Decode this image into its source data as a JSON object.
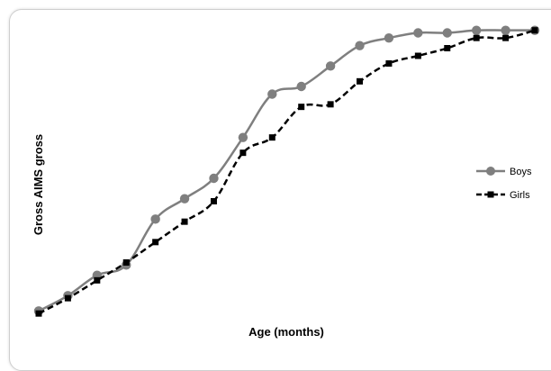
{
  "chart_data": {
    "type": "line",
    "title": "",
    "xlabel": "Age (months)",
    "ylabel": "Gross AIMS gross",
    "x": [
      1,
      2,
      3,
      4,
      5,
      6,
      7,
      8,
      9,
      10,
      11,
      12,
      13,
      14,
      15,
      16,
      17,
      18
    ],
    "ylim": [
      0,
      60
    ],
    "grid": false,
    "legend_position": "right",
    "series": [
      {
        "name": "Boys",
        "color": "#7f7f7f",
        "line_style": "solid",
        "marker": "circle",
        "values": [
          4,
          7,
          11,
          13,
          22,
          26,
          30,
          38,
          46.5,
          48,
          52,
          56,
          57.5,
          58.5,
          58.5,
          59,
          59,
          59
        ]
      },
      {
        "name": "Girls",
        "color": "#000000",
        "line_style": "dashed",
        "marker": "square",
        "values": [
          3.5,
          6.5,
          10,
          13.5,
          17.5,
          21.5,
          25.5,
          35,
          38,
          44,
          44.5,
          49,
          52.5,
          54,
          55.5,
          57.5,
          57.5,
          59
        ]
      }
    ]
  }
}
